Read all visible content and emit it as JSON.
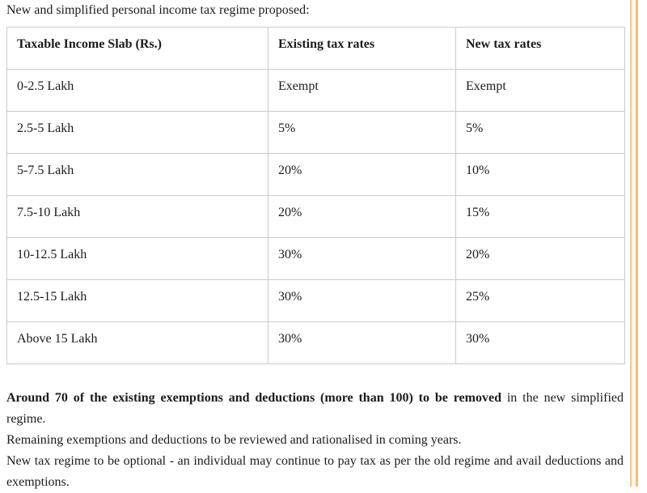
{
  "page": {
    "heading": "New and simplified personal income tax regime proposed:"
  },
  "table": {
    "columns": [
      "Taxable Income Slab (Rs.)",
      "Existing tax rates",
      "New tax rates"
    ],
    "rows": [
      [
        "0-2.5 Lakh",
        "Exempt",
        "Exempt"
      ],
      [
        "2.5-5 Lakh",
        "5%",
        "5%"
      ],
      [
        "5-7.5 Lakh",
        "20%",
        "10%"
      ],
      [
        "7.5-10 Lakh",
        "20%",
        "15%"
      ],
      [
        "10-12.5 Lakh",
        "30%",
        "20%"
      ],
      [
        "12.5-15 Lakh",
        "30%",
        "25%"
      ],
      [
        "Above 15 Lakh",
        "30%",
        "30%"
      ]
    ]
  },
  "paragraphs": {
    "p1_bold": "Around 70 of the existing exemptions and deductions (more than 100) to be removed",
    "p1_rest": " in the new simplified regime.",
    "p2": "Remaining exemptions and deductions to be reviewed and rationalised in coming years.",
    "p3": "New tax regime to be optional - an individual may continue to pay tax as per the old regime and avail deductions and exemptions."
  },
  "colors": {
    "text": "#1b1b1b",
    "table_border": "#cbcbcb",
    "strip_fill": "#fdf5e8",
    "strip_border_left": "#f3c88f",
    "strip_border_right": "#eebf85"
  }
}
